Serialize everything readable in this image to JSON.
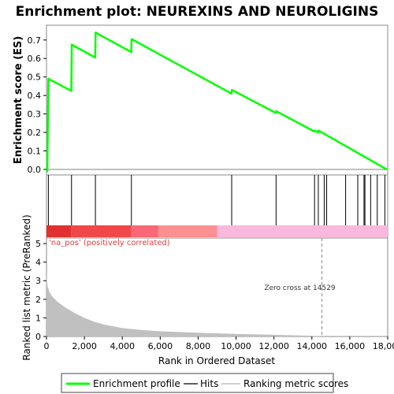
{
  "chart_data": {
    "type": "line",
    "title": "Enrichment plot: NEUREXINS AND NEUROLIGINS",
    "top_panel": {
      "ylabel": "Enrichment score (ES)",
      "ylim": [
        -0.03,
        0.78
      ],
      "yticks": [
        "0.0",
        "0.1",
        "0.2",
        "0.3",
        "0.4",
        "0.5",
        "0.6",
        "0.7"
      ],
      "ytick_values": [
        0.0,
        0.1,
        0.2,
        0.3,
        0.4,
        0.5,
        0.6,
        0.7
      ],
      "series": [
        {
          "name": "Enrichment profile",
          "color": "#00ff00",
          "x": [
            0,
            40,
            100,
            1310,
            1330,
            2570,
            2590,
            4470,
            4490,
            9760,
            9780,
            12100,
            12120,
            14130,
            14150,
            14330,
            14350,
            17950
          ],
          "y": [
            0.0,
            -0.01,
            0.49,
            0.425,
            0.675,
            0.605,
            0.74,
            0.635,
            0.705,
            0.41,
            0.43,
            0.305,
            0.315,
            0.205,
            0.21,
            0.2,
            0.21,
            0.0
          ]
        }
      ]
    },
    "hits": {
      "name": "Hits",
      "positions": [
        100,
        1320,
        2580,
        4480,
        9770,
        12110,
        14140,
        14340,
        14650,
        14780,
        15780,
        16420,
        16750,
        16800,
        17100,
        17450,
        17850
      ]
    },
    "ranking_bar": {
      "segments": [
        {
          "start": 0,
          "end": 1320,
          "color": "#e03030"
        },
        {
          "start": 1320,
          "end": 4480,
          "color": "#f04848"
        },
        {
          "start": 4480,
          "end": 5900,
          "color": "#f86878"
        },
        {
          "start": 5900,
          "end": 9000,
          "color": "#fa9090"
        },
        {
          "start": 9000,
          "end": 18000,
          "color": "#f9b8dc"
        }
      ]
    },
    "bottom_panel": {
      "ylabel": "Ranked list metric (PreRanked)",
      "xlabel": "Rank in Ordered Dataset",
      "ylim": [
        0,
        5.3
      ],
      "yticks": [
        "0",
        "1",
        "2",
        "3",
        "4",
        "5"
      ],
      "ytick_values": [
        0,
        1,
        2,
        3,
        4,
        5
      ],
      "series": [
        {
          "name": "Ranking metric scores",
          "color": "#c0c0c0",
          "x": [
            0,
            20,
            60,
            150,
            300,
            600,
            1000,
            1500,
            2000,
            2500,
            3000,
            3500,
            4000,
            5000,
            6000,
            8000,
            10000,
            12000,
            14000,
            14529,
            16000,
            18000
          ],
          "y": [
            3.35,
            3.0,
            2.7,
            2.4,
            2.15,
            1.85,
            1.55,
            1.25,
            1.0,
            0.8,
            0.65,
            0.55,
            0.45,
            0.35,
            0.28,
            0.2,
            0.14,
            0.09,
            0.04,
            0.0,
            0.0,
            0.0
          ]
        }
      ],
      "zero_cross": 14529,
      "zero_cross_label": "Zero cross at 14529",
      "pos_label": "'na_pos' (positively correlated)"
    },
    "xlim": [
      0,
      18000
    ],
    "xticks": [
      "0",
      "2,000",
      "4,000",
      "6,000",
      "8,000",
      "10,000",
      "12,000",
      "14,000",
      "16,000",
      "18,000"
    ],
    "xtick_values": [
      0,
      2000,
      4000,
      6000,
      8000,
      10000,
      12000,
      14000,
      16000,
      18000
    ],
    "legend": {
      "placement": "bottom",
      "items": [
        {
          "label": "Enrichment profile",
          "color": "#00ff00",
          "icon": "green-line"
        },
        {
          "label": "Hits",
          "color": "#000000",
          "icon": "black-line"
        },
        {
          "label": "Ranking metric scores",
          "color": "#c0c0c0",
          "icon": "gray-line"
        }
      ]
    }
  }
}
